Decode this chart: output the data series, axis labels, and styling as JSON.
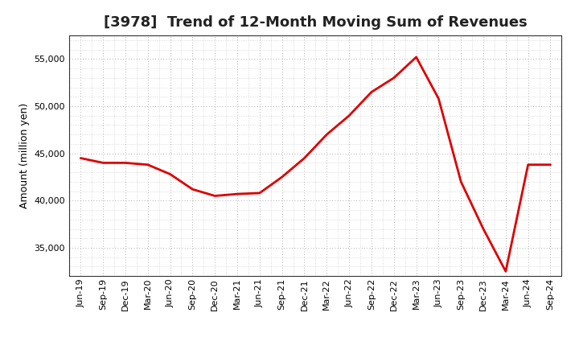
{
  "title": "[3978]  Trend of 12-Month Moving Sum of Revenues",
  "ylabel": "Amount (million yen)",
  "line_color": "#dd0000",
  "background_color": "#ffffff",
  "plot_bg_color": "#ffffff",
  "grid_color": "#999999",
  "x_labels": [
    "Jun-19",
    "Sep-19",
    "Dec-19",
    "Mar-20",
    "Jun-20",
    "Sep-20",
    "Dec-20",
    "Mar-21",
    "Jun-21",
    "Sep-21",
    "Dec-21",
    "Mar-22",
    "Jun-22",
    "Sep-22",
    "Dec-22",
    "Mar-23",
    "Jun-23",
    "Sep-23",
    "Dec-23",
    "Mar-24",
    "Jun-24",
    "Sep-24"
  ],
  "values": [
    44500,
    44000,
    44000,
    43800,
    42800,
    41200,
    40500,
    40700,
    40800,
    42500,
    44500,
    47000,
    49000,
    51500,
    53000,
    55200,
    50800,
    42000,
    37000,
    32500,
    43800,
    43800
  ],
  "ylim": [
    32000,
    57500
  ],
  "yticks": [
    35000,
    40000,
    45000,
    50000,
    55000
  ],
  "title_fontsize": 13,
  "ylabel_fontsize": 9,
  "tick_fontsize": 8,
  "linewidth": 2.0
}
